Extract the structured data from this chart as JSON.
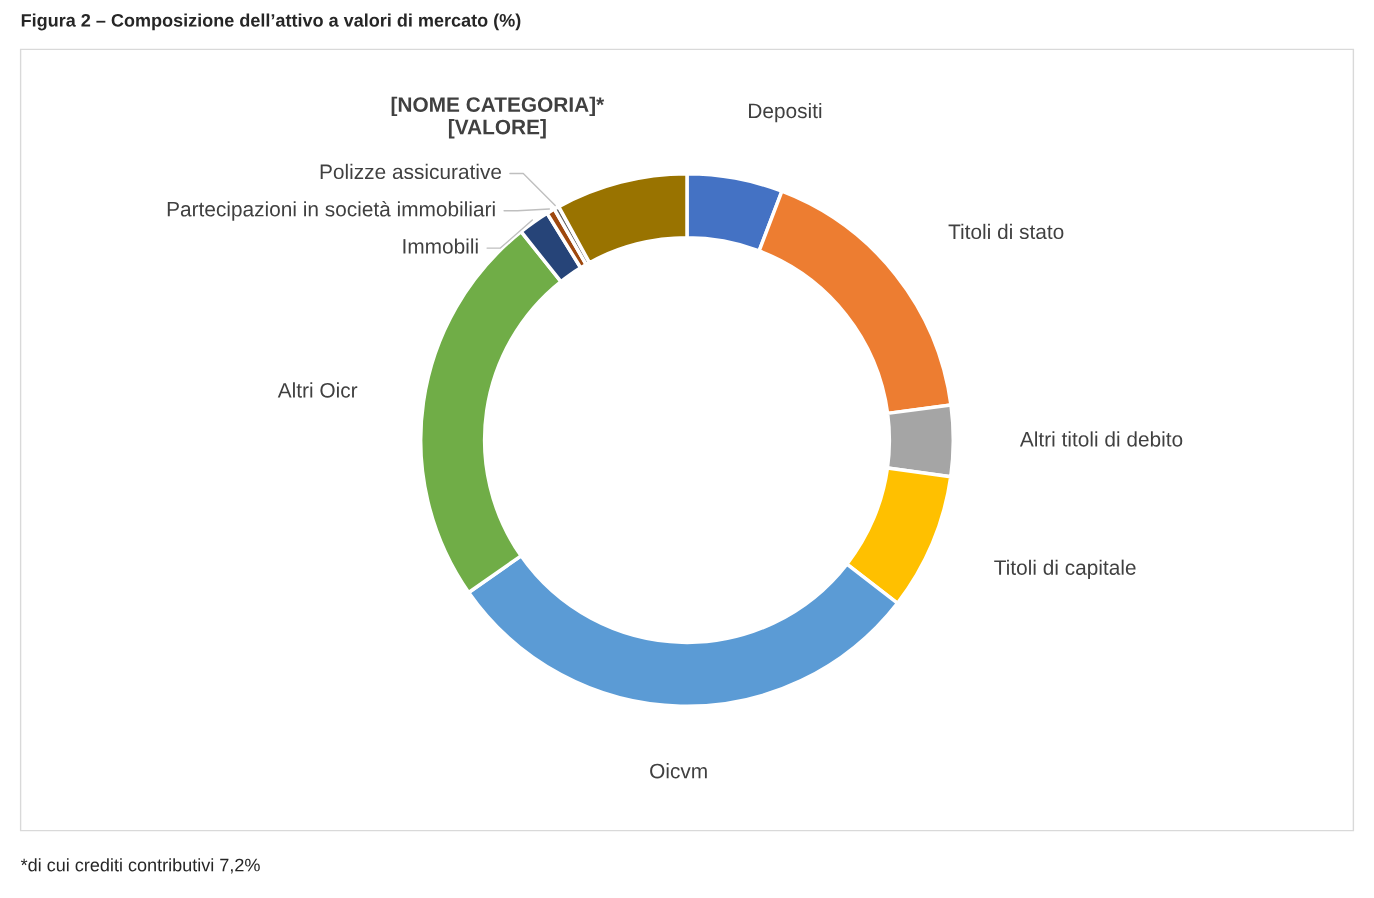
{
  "chart_data": {
    "type": "donut",
    "title": "Figura 2 – Composizione dell’attivo a valori di mercato (%)",
    "categories": [
      "Depositi",
      "Titoli di stato",
      "Altri titoli di debito",
      "Titoli di capitale",
      "Oicvm",
      "Altri Oicr",
      "Immobili",
      "Partecipazioni in società immobiliari",
      "Polizze assicurative",
      "[NOME CATEGORIA]*\n[VALORE]"
    ],
    "values": [
      5.8,
      17.1,
      4.3,
      8.3,
      29.8,
      24.0,
      1.9,
      0.5,
      0.3,
      8.0
    ],
    "colors": [
      "#4472c4",
      "#ed7d31",
      "#a5a5a5",
      "#ffc000",
      "#5b9bd5",
      "#70ad47",
      "#264478",
      "#9e480e",
      "#636363",
      "#997300"
    ],
    "annotations": [
      "*di cui crediti contributivi 7,2%"
    ]
  }
}
